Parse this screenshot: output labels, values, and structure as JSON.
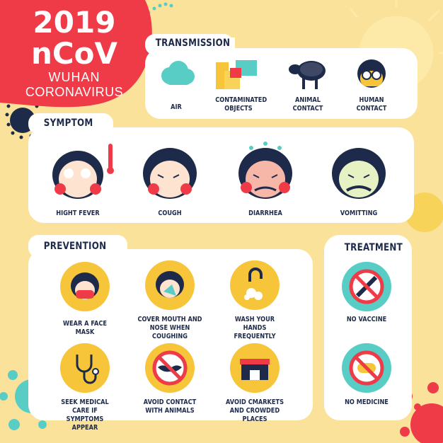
{
  "header": {
    "year": "2019",
    "virus": "nCoV",
    "city": "WUHAN",
    "subtitle": "CORONAVIRUS"
  },
  "transmission": {
    "title": "TRANSMISSION",
    "items": [
      {
        "label": "AIR",
        "icon": "cloud-icon"
      },
      {
        "label": "CONTAMINATED OBJECTS",
        "icon": "boxes-icon"
      },
      {
        "label": "ANIMAL CONTACT",
        "icon": "sheep-icon"
      },
      {
        "label": "HUMAN CONTACT",
        "icon": "person-icon"
      }
    ]
  },
  "symptom": {
    "title": "SYMPTOM",
    "items": [
      {
        "label": "HIGHT FEVER",
        "icon": "fever-face-icon"
      },
      {
        "label": "COUGH",
        "icon": "cough-face-icon"
      },
      {
        "label": "DIARRHEA",
        "icon": "diarrhea-face-icon"
      },
      {
        "label": "VOMITTING",
        "icon": "vomit-face-icon"
      }
    ]
  },
  "prevention": {
    "title": "PREVENTION",
    "items": [
      {
        "label": "WEAR A FACE MASK",
        "icon": "face-mask-icon"
      },
      {
        "label": "COVER MOUTH AND NOSE WHEN COUGHING",
        "icon": "cover-mouth-icon"
      },
      {
        "label": "WASH YOUR HANDS FREQUENTLY",
        "icon": "wash-hands-icon"
      },
      {
        "label": "SEEK MEDICAL CARE IF SYMPTOMS APPEAR",
        "icon": "stethoscope-icon"
      },
      {
        "label": "AVOID CONTACT WITH ANIMALS",
        "icon": "no-bat-icon"
      },
      {
        "label": "AVOID CMARKETS AND CROWDED PLACES",
        "icon": "market-icon"
      }
    ]
  },
  "treatment": {
    "title": "TREATMENT",
    "items": [
      {
        "label": "NO VACCINE",
        "icon": "no-syringe-icon"
      },
      {
        "label": "NO MEDICINE",
        "icon": "no-pill-icon"
      }
    ]
  },
  "colors": {
    "background": "#fbe29a",
    "red": "#ef3b48",
    "navy": "#1e2a4a",
    "yellow": "#f7c53a",
    "teal": "#58cdc6"
  }
}
